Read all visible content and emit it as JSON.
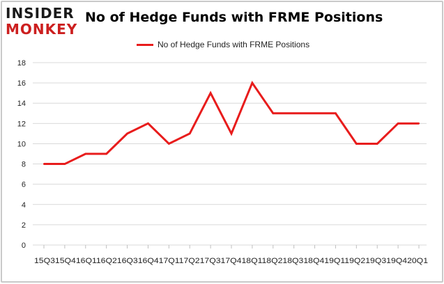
{
  "brand": {
    "line1": "INSIDER",
    "line2": "MONKEY",
    "color_dark": "#1a1a1a",
    "color_red": "#cc1f1f"
  },
  "chart_data": {
    "type": "line",
    "title": "No of Hedge Funds with FRME Positions",
    "xlabel": "",
    "ylabel": "",
    "categories": [
      "15Q3",
      "15Q4",
      "16Q1",
      "16Q2",
      "16Q3",
      "16Q4",
      "17Q1",
      "17Q2",
      "17Q3",
      "17Q4",
      "18Q1",
      "18Q2",
      "18Q3",
      "18Q4",
      "19Q1",
      "19Q2",
      "19Q3",
      "19Q4",
      "20Q1"
    ],
    "x_tick_text": "15Q315Q416Q116Q216Q316Q417Q117Q217Q317Q418Q118Q218Q318Q419Q119Q219Q319Q420Q1",
    "series": [
      {
        "name": "No of Hedge Funds with FRME Positions",
        "color": "#e81c1c",
        "values": [
          8,
          8,
          9,
          9,
          11,
          12,
          10,
          11,
          15,
          11,
          16,
          13,
          13,
          13,
          13,
          10,
          10,
          12,
          12
        ]
      }
    ],
    "ylim": [
      0,
      18
    ],
    "yticks": [
      0,
      2,
      4,
      6,
      8,
      10,
      12,
      14,
      16,
      18
    ],
    "grid": true,
    "legend_position": "top-center"
  }
}
